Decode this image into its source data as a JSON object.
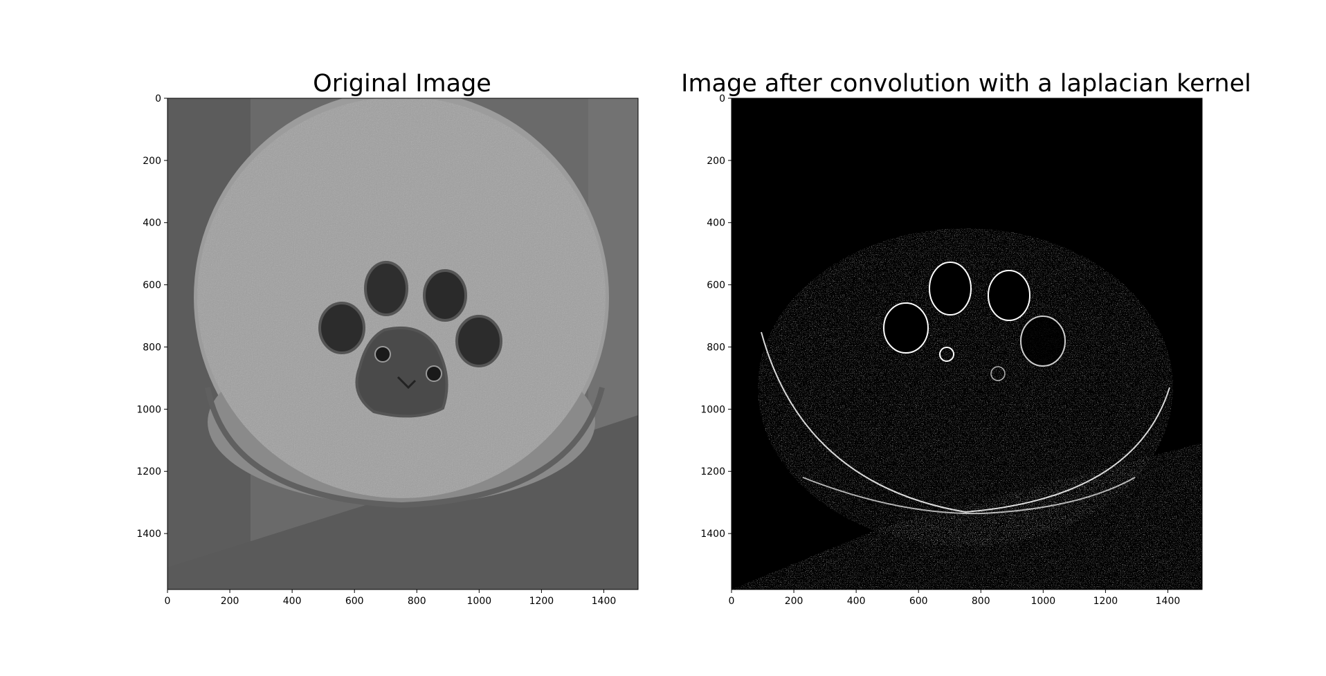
{
  "chart_data": [
    {
      "type": "image",
      "title": "Original Image",
      "image_kind": "grayscale-photo",
      "description_color": "#7a7a7a",
      "xlim": [
        0,
        1510
      ],
      "ylim": [
        1580,
        0
      ],
      "xticks": [
        0,
        200,
        400,
        600,
        800,
        1000,
        1200,
        1400
      ],
      "yticks": [
        0,
        200,
        400,
        600,
        800,
        1000,
        1200,
        1400
      ],
      "xticklabels": [
        "0",
        "200",
        "400",
        "600",
        "800",
        "1000",
        "1200",
        "1400"
      ],
      "yticklabels": [
        "0",
        "200",
        "400",
        "600",
        "800",
        "1000",
        "1200",
        "1400"
      ]
    },
    {
      "type": "image",
      "title": "Image after convolution with a laplacian kernel",
      "image_kind": "edge-map",
      "background_color": "#000000",
      "edge_color": "#ffffff",
      "xlim": [
        0,
        1510
      ],
      "ylim": [
        1580,
        0
      ],
      "xticks": [
        0,
        200,
        400,
        600,
        800,
        1000,
        1200,
        1400
      ],
      "yticks": [
        0,
        200,
        400,
        600,
        800,
        1000,
        1200,
        1400
      ],
      "xticklabels": [
        "0",
        "200",
        "400",
        "600",
        "800",
        "1000",
        "1200",
        "1400"
      ],
      "yticklabels": [
        "0",
        "200",
        "400",
        "600",
        "800",
        "1000",
        "1200",
        "1400"
      ]
    }
  ]
}
